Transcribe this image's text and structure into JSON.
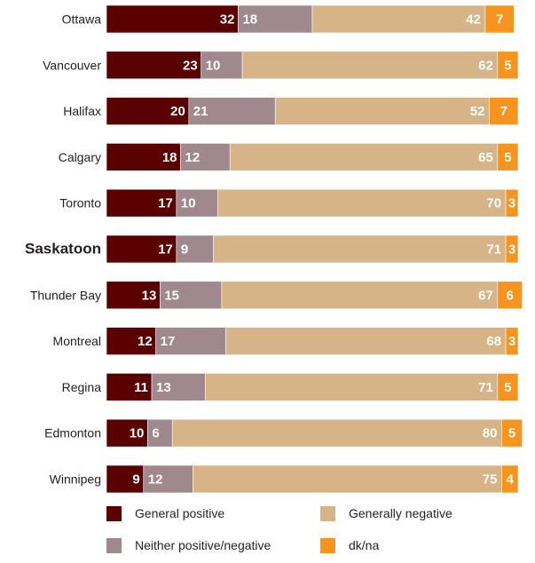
{
  "chart_data": {
    "type": "bar",
    "orientation": "horizontal",
    "stacked": true,
    "categories": [
      "Ottawa",
      "Vancouver",
      "Halifax",
      "Calgary",
      "Toronto",
      "Saskatoon",
      "Thunder Bay",
      "Montreal",
      "Regina",
      "Edmonton",
      "Winnipeg"
    ],
    "highlighted_category": "Saskatoon",
    "series": [
      {
        "name": "General positive",
        "color": "#5a0001",
        "values": [
          32,
          23,
          20,
          18,
          17,
          17,
          13,
          12,
          11,
          10,
          9
        ]
      },
      {
        "name": "Neither positive/negative",
        "color": "#a0888f",
        "values": [
          18,
          10,
          21,
          12,
          10,
          9,
          15,
          17,
          13,
          6,
          12
        ]
      },
      {
        "name": "Generally negative",
        "color": "#d6b487",
        "values": [
          42,
          62,
          52,
          65,
          70,
          71,
          67,
          68,
          71,
          80,
          75
        ]
      },
      {
        "name": "dk/na",
        "color": "#f7941d",
        "values": [
          7,
          5,
          7,
          5,
          3,
          3,
          6,
          3,
          5,
          5,
          4
        ]
      }
    ],
    "xlim": [
      0,
      100
    ],
    "legend_position": "bottom",
    "title": "",
    "xlabel": "",
    "ylabel": ""
  }
}
